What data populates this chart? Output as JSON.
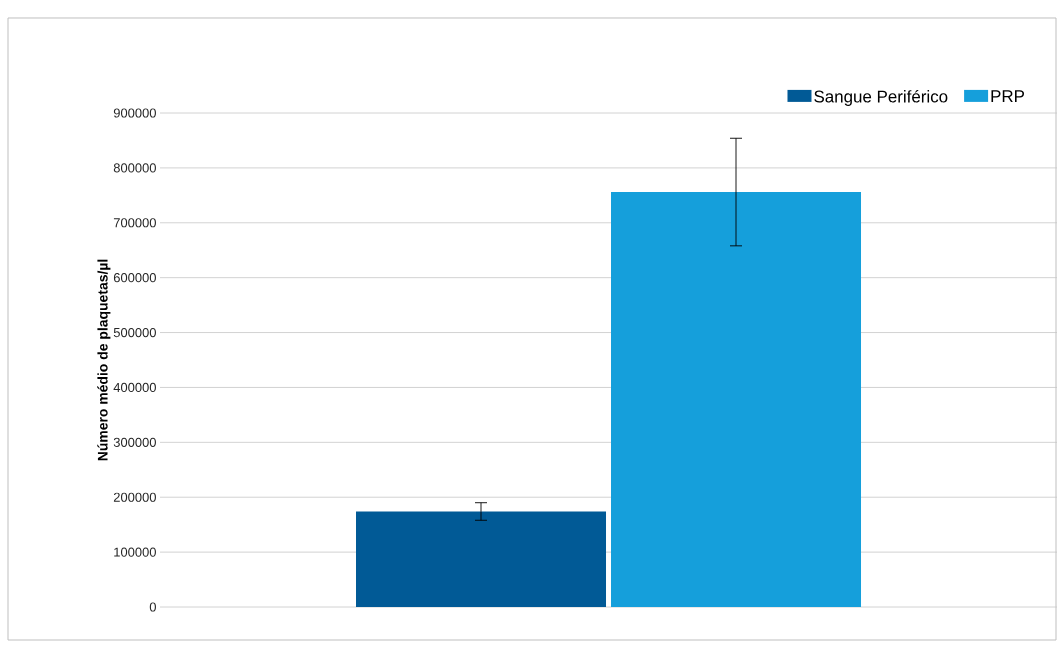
{
  "chart_data": {
    "type": "bar",
    "ylabel": "Número médio de plaquetas/µl",
    "categories": [
      null
    ],
    "series": [
      {
        "name": "Sangue Periférico",
        "color": "#015a96",
        "values": [
          174000
        ],
        "errors": [
          16000
        ]
      },
      {
        "name": "PRP",
        "color": "#159fdb",
        "values": [
          756000
        ],
        "errors": [
          98000
        ]
      }
    ],
    "ylim": [
      0,
      900000
    ],
    "yticks": [
      0,
      100000,
      200000,
      300000,
      400000,
      500000,
      600000,
      700000,
      800000,
      900000
    ],
    "grid": "y",
    "legend": "top right",
    "tick_labels": "y"
  }
}
